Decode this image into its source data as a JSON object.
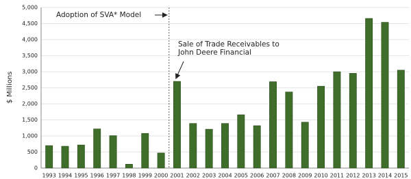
{
  "chart_data": {
    "type": "bar",
    "y_label": "$ Millions",
    "categories": [
      "1993",
      "1994",
      "1995",
      "1996",
      "1997",
      "1998",
      "1999",
      "2000",
      "2001",
      "2002",
      "2003",
      "2004",
      "2005",
      "2006",
      "2007",
      "2008",
      "2009",
      "2010",
      "2011",
      "2012",
      "2013",
      "2014",
      "2015"
    ],
    "values": [
      700,
      680,
      720,
      1220,
      1010,
      120,
      1080,
      470,
      2700,
      1390,
      1210,
      1390,
      1660,
      1320,
      2690,
      2370,
      1430,
      2550,
      3000,
      2950,
      4660,
      4540,
      3050
    ],
    "color": "#3f6e2b",
    "ylim": [
      0,
      5000
    ],
    "yticks": [
      0,
      500,
      {
        "value": 1000,
        "label": "1,000"
      },
      {
        "value": 1500,
        "label": "1,500"
      },
      {
        "value": 2000,
        "label": "2,000"
      },
      {
        "value": 2500,
        "label": "2,500"
      },
      {
        "value": 3000,
        "label": "3,000"
      },
      {
        "value": 3500,
        "label": "3,500"
      },
      {
        "value": 4000,
        "label": "4,000"
      },
      {
        "value": 4500,
        "label": "4,500"
      },
      {
        "value": 5000,
        "label": "5,000"
      }
    ],
    "grid": true,
    "annotations": [
      {
        "text": "Adoption of SVA* Model"
      },
      {
        "lines": [
          "Sale of Trade Receivables to",
          "John Deere Financial"
        ]
      }
    ]
  }
}
